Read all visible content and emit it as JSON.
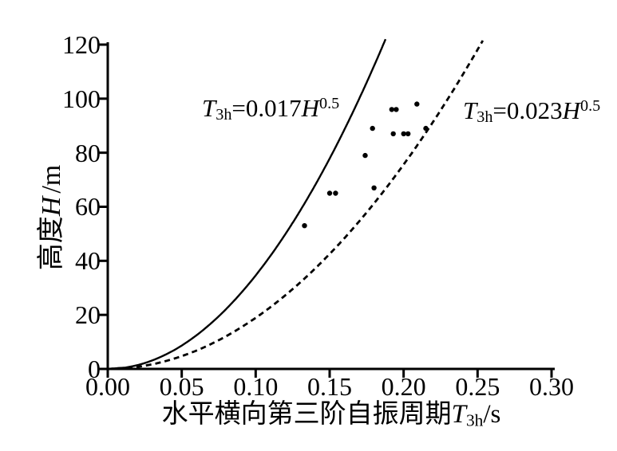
{
  "figure": {
    "background_color": "#ffffff",
    "ink_color": "#000000"
  },
  "y_axis": {
    "title": {
      "prefix": "高度",
      "variable": "H",
      "unit": "/m"
    },
    "tick_labels": [
      "0",
      "20",
      "40",
      "60",
      "80",
      "100",
      "120"
    ]
  },
  "x_axis": {
    "title": {
      "prefix": "水平横向第三阶自振周期",
      "variable": "T",
      "subscript": "3h",
      "unit": "/s"
    },
    "tick_labels": [
      "0.00",
      "0.05",
      "0.10",
      "0.15",
      "0.20",
      "0.25",
      "0.30"
    ]
  },
  "annotations": {
    "curve1_label": {
      "variable": "T",
      "subscript": "3h",
      "equals": "=",
      "coefficient": "0.017",
      "base": "H",
      "exponent": "0.5"
    },
    "curve2_label": {
      "variable": "T",
      "subscript": "3h",
      "equals": "=",
      "coefficient": "0.023",
      "base": "H",
      "exponent": "0.5"
    }
  },
  "chart_data": {
    "type": "scatter",
    "title": "",
    "xlabel": "水平横向第三阶自振周期T3h/s",
    "ylabel": "高度H/m",
    "xlim": [
      0,
      0.3
    ],
    "ylim": [
      0,
      120
    ],
    "x_ticks": [
      0,
      0.05,
      0.1,
      0.15,
      0.2,
      0.25,
      0.3
    ],
    "y_ticks": [
      0,
      20,
      40,
      60,
      80,
      100,
      120
    ],
    "grid": false,
    "legend_position": "none",
    "series": [
      {
        "name": "measured-points",
        "type": "scatter",
        "marker": "filled-circle",
        "color": "#000000",
        "points": [
          [
            0.133,
            53
          ],
          [
            0.15,
            65
          ],
          [
            0.154,
            65
          ],
          [
            0.174,
            79
          ],
          [
            0.179,
            89
          ],
          [
            0.18,
            67
          ],
          [
            0.192,
            96
          ],
          [
            0.195,
            96
          ],
          [
            0.193,
            87
          ],
          [
            0.2,
            87
          ],
          [
            0.203,
            87
          ],
          [
            0.209,
            98
          ],
          [
            0.215,
            89
          ]
        ]
      },
      {
        "name": "T3h=0.017H^0.5",
        "type": "curve",
        "line_style": "solid",
        "color": "#000000",
        "coefficient": 0.017,
        "exponent": 0.5,
        "h_max": 122.3
      },
      {
        "name": "T3h=0.023H^0.5",
        "type": "curve",
        "line_style": "dashed",
        "color": "#000000",
        "coefficient": 0.023,
        "exponent": 0.5,
        "h_max": 121.8
      }
    ]
  }
}
